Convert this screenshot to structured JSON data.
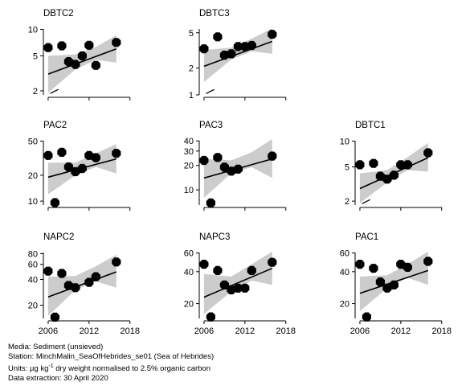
{
  "chart_data": {
    "type": "scatter",
    "x_axis": {
      "lim": [
        2005.3,
        2018.5
      ],
      "ticks": [
        2006,
        2012,
        2018
      ]
    },
    "panels": [
      {
        "id": "DBTC2",
        "title": "DBTC2",
        "log": true,
        "ylim": [
          1.8,
          11
        ],
        "yticks": [
          2,
          5,
          10
        ],
        "points": [
          [
            2006,
            6.2
          ],
          [
            2008,
            6.5
          ],
          [
            2009,
            4.3
          ],
          [
            2010,
            4.0
          ],
          [
            2011,
            5.0
          ],
          [
            2012,
            6.6
          ],
          [
            2013,
            3.9
          ],
          [
            2016,
            7.1
          ]
        ],
        "trend": [
          [
            2006,
            3.1
          ],
          [
            2016,
            6.0
          ]
        ],
        "band_upper": [
          [
            2006,
            5.0
          ],
          [
            2010,
            5.2
          ],
          [
            2013,
            6.3
          ],
          [
            2016,
            8.6
          ]
        ],
        "band_lower": [
          [
            2006,
            1.9
          ],
          [
            2010,
            3.5
          ],
          [
            2013,
            4.5
          ],
          [
            2016,
            4.2
          ]
        ],
        "below_dl": [
          [
            2006.9,
            1.95
          ]
        ]
      },
      {
        "id": "DBTC3",
        "title": "DBTC3",
        "log": true,
        "ylim": [
          1,
          6
        ],
        "yticks": [
          1,
          2,
          5
        ],
        "points": [
          [
            2006,
            3.3
          ],
          [
            2008,
            4.5
          ],
          [
            2009,
            2.8
          ],
          [
            2010,
            2.9
          ],
          [
            2011,
            3.5
          ],
          [
            2012,
            3.5
          ],
          [
            2013,
            3.6
          ],
          [
            2016,
            4.8
          ]
        ],
        "trend": [
          [
            2006,
            2.1
          ],
          [
            2016,
            4.0
          ]
        ],
        "band_upper": [
          [
            2006,
            3.2
          ],
          [
            2010,
            3.4
          ],
          [
            2013,
            4.3
          ],
          [
            2016,
            5.6
          ]
        ],
        "band_lower": [
          [
            2006,
            1.4
          ],
          [
            2010,
            2.5
          ],
          [
            2013,
            3.1
          ],
          [
            2016,
            2.9
          ]
        ],
        "below_dl": [
          [
            2006.9,
            1.08
          ]
        ]
      },
      {
        "id": "PAC2",
        "title": "PAC2",
        "log": true,
        "ylim": [
          9,
          55
        ],
        "yticks": [
          10,
          20,
          50
        ],
        "points": [
          [
            2006,
            34
          ],
          [
            2007,
            9.6
          ],
          [
            2008,
            37
          ],
          [
            2009,
            25
          ],
          [
            2010,
            22
          ],
          [
            2011,
            24
          ],
          [
            2012,
            34
          ],
          [
            2013,
            32
          ],
          [
            2016,
            36
          ]
        ],
        "trend": [
          [
            2006,
            19
          ],
          [
            2016,
            31
          ]
        ],
        "band_upper": [
          [
            2006,
            28
          ],
          [
            2010,
            28
          ],
          [
            2013,
            36
          ],
          [
            2016,
            46
          ]
        ],
        "band_lower": [
          [
            2006,
            12
          ],
          [
            2010,
            20
          ],
          [
            2013,
            25
          ],
          [
            2016,
            21
          ]
        ]
      },
      {
        "id": "PAC3",
        "title": "PAC3",
        "log": true,
        "ylim": [
          6.5,
          44
        ],
        "yticks": [
          10,
          20,
          30,
          40
        ],
        "points": [
          [
            2006,
            23
          ],
          [
            2007,
            6.9
          ],
          [
            2008,
            25
          ],
          [
            2009,
            19
          ],
          [
            2010,
            17
          ],
          [
            2011,
            18
          ],
          [
            2016,
            26
          ]
        ],
        "trend": [
          [
            2006,
            14
          ],
          [
            2016,
            24
          ]
        ],
        "band_upper": [
          [
            2006,
            24
          ],
          [
            2010,
            23
          ],
          [
            2013,
            29
          ],
          [
            2016,
            42
          ]
        ],
        "band_lower": [
          [
            2006,
            8
          ],
          [
            2010,
            16
          ],
          [
            2013,
            19
          ],
          [
            2016,
            14
          ]
        ]
      },
      {
        "id": "DBTC1",
        "title": "DBTC1",
        "log": true,
        "ylim": [
          1.8,
          11
        ],
        "yticks": [
          2,
          5,
          10
        ],
        "points": [
          [
            2006,
            5.3
          ],
          [
            2008,
            5.5
          ],
          [
            2009,
            3.9
          ],
          [
            2010,
            3.6
          ],
          [
            2011,
            4.0
          ],
          [
            2012,
            5.3
          ],
          [
            2013,
            5.3
          ],
          [
            2016,
            7.3
          ]
        ],
        "trend": [
          [
            2006,
            2.8
          ],
          [
            2016,
            6.4
          ]
        ],
        "band_upper": [
          [
            2006,
            4.2
          ],
          [
            2010,
            4.6
          ],
          [
            2013,
            6.5
          ],
          [
            2016,
            9.5
          ]
        ],
        "band_lower": [
          [
            2006,
            1.9
          ],
          [
            2010,
            3.3
          ],
          [
            2013,
            4.6
          ],
          [
            2016,
            4.4
          ]
        ],
        "below_dl": [
          [
            2006.9,
            1.95
          ]
        ]
      },
      {
        "id": "NAPC2",
        "title": "NAPC2",
        "log": true,
        "ylim": [
          14,
          90
        ],
        "yticks": [
          20,
          40,
          60,
          80
        ],
        "points": [
          [
            2006,
            50
          ],
          [
            2007,
            14.5
          ],
          [
            2008,
            47
          ],
          [
            2009,
            34
          ],
          [
            2010,
            32
          ],
          [
            2012,
            37
          ],
          [
            2013,
            43
          ],
          [
            2016,
            64
          ]
        ],
        "trend": [
          [
            2006,
            25
          ],
          [
            2016,
            49
          ]
        ],
        "band_upper": [
          [
            2006,
            43
          ],
          [
            2010,
            44
          ],
          [
            2013,
            57
          ],
          [
            2016,
            78
          ]
        ],
        "band_lower": [
          [
            2006,
            15
          ],
          [
            2010,
            30
          ],
          [
            2013,
            38
          ],
          [
            2016,
            32
          ]
        ]
      },
      {
        "id": "NAPC3",
        "title": "NAPC3",
        "log": true,
        "ylim": [
          14.5,
          65
        ],
        "yticks": [
          20,
          40,
          60
        ],
        "points": [
          [
            2006,
            47
          ],
          [
            2007,
            15
          ],
          [
            2008,
            41
          ],
          [
            2009,
            30
          ],
          [
            2010,
            27
          ],
          [
            2011,
            28
          ],
          [
            2012,
            28
          ],
          [
            2013,
            41
          ],
          [
            2016,
            49
          ]
        ],
        "trend": [
          [
            2006,
            23
          ],
          [
            2016,
            43
          ]
        ],
        "band_upper": [
          [
            2006,
            38
          ],
          [
            2010,
            36
          ],
          [
            2013,
            47
          ],
          [
            2016,
            62
          ]
        ],
        "band_lower": [
          [
            2006,
            16
          ],
          [
            2010,
            26
          ],
          [
            2013,
            33
          ],
          [
            2016,
            30
          ]
        ]
      },
      {
        "id": "PAC1",
        "title": "PAC1",
        "log": true,
        "ylim": [
          14.5,
          65
        ],
        "yticks": [
          20,
          40,
          60
        ],
        "points": [
          [
            2006,
            47
          ],
          [
            2007,
            15
          ],
          [
            2008,
            43
          ],
          [
            2009,
            32
          ],
          [
            2010,
            28
          ],
          [
            2011,
            30
          ],
          [
            2012,
            47
          ],
          [
            2013,
            44
          ],
          [
            2016,
            50
          ]
        ],
        "trend": [
          [
            2006,
            25
          ],
          [
            2016,
            41
          ]
        ],
        "band_upper": [
          [
            2006,
            36
          ],
          [
            2010,
            37
          ],
          [
            2013,
            47
          ],
          [
            2016,
            62
          ]
        ],
        "band_lower": [
          [
            2006,
            17
          ],
          [
            2010,
            28
          ],
          [
            2013,
            35
          ],
          [
            2016,
            30
          ]
        ]
      }
    ]
  },
  "footer": {
    "media": "Media: Sediment (unsieved)",
    "station": "Station: MinchMalin_SeaOfHebrides_se01 (Sea of Hebrides)",
    "units_prefix": "Units: ",
    "units_unit": "µg kg",
    "units_exp": "-1",
    "units_suffix": " dry weight normalised to 2.5% organic carbon",
    "extraction": "Data extraction: 30 April 2020"
  }
}
